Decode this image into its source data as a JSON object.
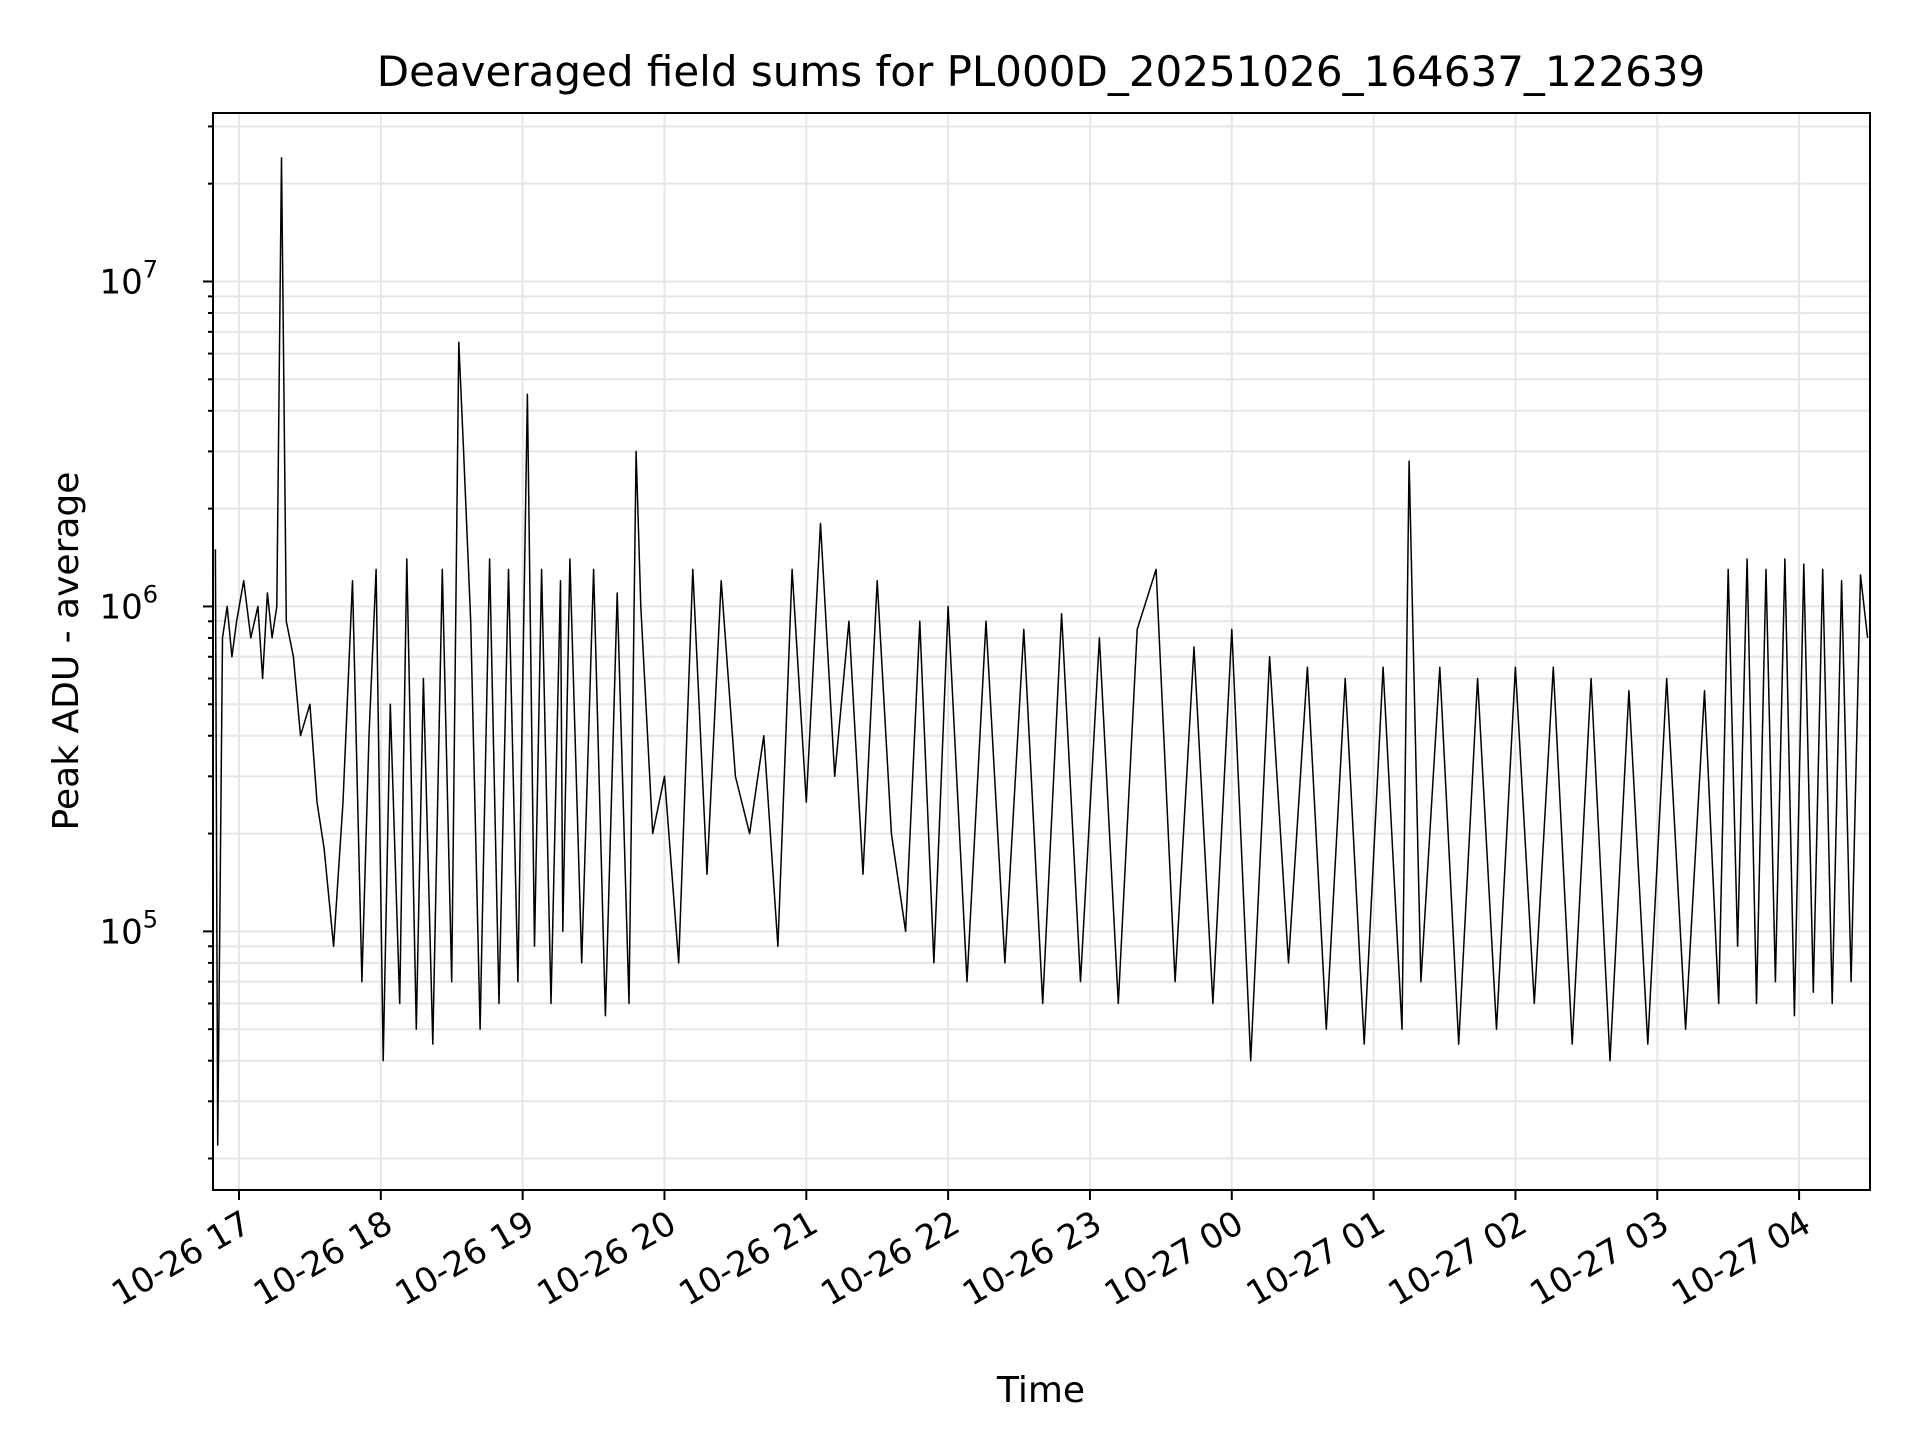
{
  "chart_data": {
    "type": "line",
    "title": "Deaveraged field sums for PL000D_20251026_164637_122639",
    "xlabel": "Time",
    "ylabel": "Peak ADU - average",
    "yscale": "log",
    "ylim": [
      16000,
      33000000
    ],
    "xlim": [
      "2025-10-26 16:49",
      "2025-10-27 04:30"
    ],
    "xticks": [
      "10-26 17",
      "10-26 18",
      "10-26 19",
      "10-26 20",
      "10-26 21",
      "10-26 22",
      "10-26 23",
      "10-27 00",
      "10-27 01",
      "10-27 02",
      "10-27 03",
      "10-27 04"
    ],
    "yticks": [
      {
        "base": "10",
        "exp": "5"
      },
      {
        "base": "10",
        "exp": "6"
      },
      {
        "base": "10",
        "exp": "7"
      }
    ],
    "grid": true,
    "line_color": "#000000",
    "series": [
      {
        "x": [
          "2025-10-26 16:50",
          "2025-10-26 16:51",
          "2025-10-26 16:53",
          "2025-10-26 16:55",
          "2025-10-26 16:57",
          "2025-10-26 16:59",
          "2025-10-26 17:02",
          "2025-10-26 17:05",
          "2025-10-26 17:08",
          "2025-10-26 17:10",
          "2025-10-26 17:12",
          "2025-10-26 17:14",
          "2025-10-26 17:16",
          "2025-10-26 17:18",
          "2025-10-26 17:20",
          "2025-10-26 17:23",
          "2025-10-26 17:26",
          "2025-10-26 17:30",
          "2025-10-26 17:33",
          "2025-10-26 17:36",
          "2025-10-26 17:40",
          "2025-10-26 17:44",
          "2025-10-26 17:48",
          "2025-10-26 17:52",
          "2025-10-26 17:55",
          "2025-10-26 17:58",
          "2025-10-26 18:01",
          "2025-10-26 18:04",
          "2025-10-26 18:08",
          "2025-10-26 18:11",
          "2025-10-26 18:15",
          "2025-10-26 18:18",
          "2025-10-26 18:22",
          "2025-10-26 18:26",
          "2025-10-26 18:30",
          "2025-10-26 18:33",
          "2025-10-26 18:35",
          "2025-10-26 18:38",
          "2025-10-26 18:42",
          "2025-10-26 18:46",
          "2025-10-26 18:50",
          "2025-10-26 18:54",
          "2025-10-26 18:58",
          "2025-10-26 19:02",
          "2025-10-26 19:05",
          "2025-10-26 19:08",
          "2025-10-26 19:12",
          "2025-10-26 19:16",
          "2025-10-26 19:17",
          "2025-10-26 19:20",
          "2025-10-26 19:25",
          "2025-10-26 19:30",
          "2025-10-26 19:35",
          "2025-10-26 19:40",
          "2025-10-26 19:45",
          "2025-10-26 19:48",
          "2025-10-26 19:50",
          "2025-10-26 19:55",
          "2025-10-26 20:00",
          "2025-10-26 20:06",
          "2025-10-26 20:12",
          "2025-10-26 20:18",
          "2025-10-26 20:24",
          "2025-10-26 20:30",
          "2025-10-26 20:36",
          "2025-10-26 20:42",
          "2025-10-26 20:48",
          "2025-10-26 20:54",
          "2025-10-26 21:00",
          "2025-10-26 21:06",
          "2025-10-26 21:12",
          "2025-10-26 21:18",
          "2025-10-26 21:24",
          "2025-10-26 21:30",
          "2025-10-26 21:36",
          "2025-10-26 21:42",
          "2025-10-26 21:48",
          "2025-10-26 21:54",
          "2025-10-26 22:00",
          "2025-10-26 22:08",
          "2025-10-26 22:16",
          "2025-10-26 22:24",
          "2025-10-26 22:32",
          "2025-10-26 22:40",
          "2025-10-26 22:48",
          "2025-10-26 22:56",
          "2025-10-26 23:04",
          "2025-10-26 23:12",
          "2025-10-26 23:20",
          "2025-10-26 23:28",
          "2025-10-26 23:36",
          "2025-10-26 23:44",
          "2025-10-26 23:52",
          "2025-10-27 00:00",
          "2025-10-27 00:08",
          "2025-10-27 00:16",
          "2025-10-27 00:24",
          "2025-10-27 00:32",
          "2025-10-27 00:40",
          "2025-10-27 00:48",
          "2025-10-27 00:56",
          "2025-10-27 01:04",
          "2025-10-27 01:12",
          "2025-10-27 01:15",
          "2025-10-27 01:20",
          "2025-10-27 01:28",
          "2025-10-27 01:36",
          "2025-10-27 01:44",
          "2025-10-27 01:52",
          "2025-10-27 02:00",
          "2025-10-27 02:08",
          "2025-10-27 02:16",
          "2025-10-27 02:24",
          "2025-10-27 02:32",
          "2025-10-27 02:40",
          "2025-10-27 02:48",
          "2025-10-27 02:56",
          "2025-10-27 03:04",
          "2025-10-27 03:12",
          "2025-10-27 03:20",
          "2025-10-27 03:26",
          "2025-10-27 03:30",
          "2025-10-27 03:34",
          "2025-10-27 03:38",
          "2025-10-27 03:42",
          "2025-10-27 03:46",
          "2025-10-27 03:50",
          "2025-10-27 03:54",
          "2025-10-27 03:58",
          "2025-10-27 04:02",
          "2025-10-27 04:06",
          "2025-10-27 04:10",
          "2025-10-27 04:14",
          "2025-10-27 04:18",
          "2025-10-27 04:22",
          "2025-10-27 04:26",
          "2025-10-27 04:29"
        ],
        "y": [
          1500000,
          22000,
          800000,
          1000000,
          700000,
          900000,
          1200000,
          800000,
          1000000,
          600000,
          1100000,
          800000,
          1000000,
          24000000,
          900000,
          700000,
          400000,
          500000,
          250000,
          180000,
          90000,
          250000,
          1200000,
          70000,
          400000,
          1300000,
          40000,
          500000,
          60000,
          1400000,
          50000,
          600000,
          45000,
          1300000,
          70000,
          6500000,
          3000000,
          900000,
          50000,
          1400000,
          60000,
          1300000,
          70000,
          4500000,
          90000,
          1300000,
          60000,
          1200000,
          100000,
          1400000,
          80000,
          1300000,
          55000,
          1100000,
          60000,
          3000000,
          1000000,
          200000,
          300000,
          80000,
          1300000,
          150000,
          1200000,
          300000,
          200000,
          400000,
          90000,
          1300000,
          250000,
          1800000,
          300000,
          900000,
          150000,
          1200000,
          200000,
          100000,
          900000,
          80000,
          1000000,
          70000,
          900000,
          80000,
          850000,
          60000,
          950000,
          70000,
          800000,
          60000,
          850000,
          1300000,
          70000,
          750000,
          60000,
          850000,
          40000,
          700000,
          80000,
          650000,
          50000,
          600000,
          45000,
          650000,
          50000,
          2800000,
          70000,
          650000,
          45000,
          600000,
          50000,
          650000,
          60000,
          650000,
          45000,
          600000,
          40000,
          550000,
          45000,
          600000,
          50000,
          550000,
          60000,
          1300000,
          90000,
          1400000,
          60000,
          1300000,
          70000,
          1400000,
          55000,
          1350000,
          65000,
          1300000,
          60000,
          1200000,
          70000,
          1250000,
          800000
        ]
      }
    ]
  }
}
